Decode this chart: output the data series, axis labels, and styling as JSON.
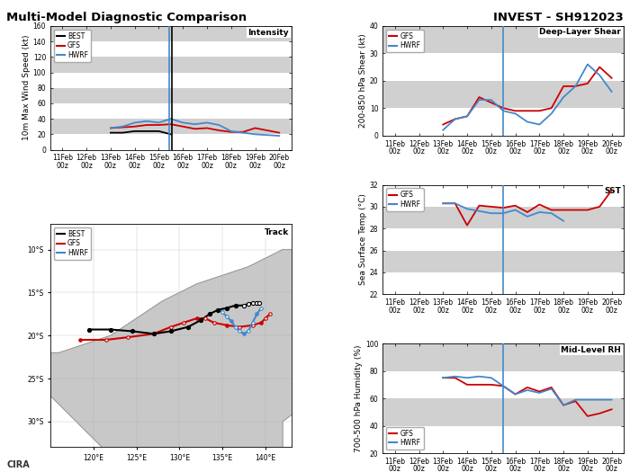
{
  "title_left": "Multi-Model Diagnostic Comparison",
  "title_right": "INVEST - SH912023",
  "xtick_labels": [
    "11Feb\n00z",
    "12Feb\n00z",
    "13Feb\n00z",
    "14Feb\n00z",
    "15Feb\n00z",
    "16Feb\n00z",
    "17Feb\n00z",
    "18Feb\n00z",
    "19Feb\n00z",
    "20Feb\n00z"
  ],
  "xtick_pos": [
    11,
    12,
    13,
    14,
    15,
    16,
    17,
    18,
    19,
    20
  ],
  "xlim": [
    10.5,
    20.5
  ],
  "intensity_ylim": [
    0,
    160
  ],
  "intensity_yticks": [
    0,
    20,
    40,
    60,
    80,
    100,
    120,
    140,
    160
  ],
  "intensity_ylabel": "10m Max Wind Speed (kt)",
  "intensity_title": "Intensity",
  "intensity_vline_black": 15.55,
  "intensity_vline_blue": 15.45,
  "intensity_best_x": [
    13.0,
    13.5,
    14.0,
    14.5,
    15.0,
    15.5
  ],
  "intensity_best_y": [
    22,
    22,
    24,
    24,
    24,
    20
  ],
  "intensity_gfs_x": [
    13.0,
    13.5,
    14.0,
    14.5,
    15.0,
    15.5,
    16.0,
    16.5,
    17.0,
    17.5,
    18.0,
    18.5,
    19.0,
    19.5,
    20.0
  ],
  "intensity_gfs_y": [
    28,
    29,
    30,
    32,
    32,
    33,
    30,
    27,
    28,
    25,
    23,
    23,
    28,
    25,
    22
  ],
  "intensity_hwrf_x": [
    13.0,
    13.5,
    14.0,
    14.5,
    15.0,
    15.5,
    16.0,
    16.5,
    17.0,
    17.5,
    18.0,
    18.5,
    19.0,
    19.5,
    20.0
  ],
  "intensity_hwrf_y": [
    28,
    30,
    35,
    37,
    35,
    40,
    35,
    33,
    35,
    32,
    24,
    22,
    20,
    19,
    18
  ],
  "shear_ylim": [
    0,
    40
  ],
  "shear_yticks": [
    0,
    10,
    20,
    30,
    40
  ],
  "shear_ylabel": "200-850 hPa Shear (kt)",
  "shear_title": "Deep-Layer Shear",
  "shear_vline": 15.5,
  "shear_gfs_x": [
    13.0,
    13.5,
    14.0,
    14.5,
    15.0,
    15.5,
    16.0,
    16.5,
    17.0,
    17.5,
    18.0,
    18.5,
    19.0,
    19.5,
    20.0
  ],
  "shear_gfs_y": [
    4,
    6,
    7,
    14,
    12,
    10,
    9,
    9,
    9,
    10,
    18,
    18,
    19,
    25,
    21
  ],
  "shear_hwrf_x": [
    13.0,
    13.5,
    14.0,
    14.5,
    15.0,
    15.5,
    16.0,
    16.5,
    17.0,
    17.5,
    18.0,
    18.5,
    19.0,
    19.5,
    20.0
  ],
  "shear_hwrf_y": [
    2,
    6,
    7,
    13,
    13,
    9,
    8,
    5,
    4,
    8,
    14,
    18,
    26,
    22,
    16
  ],
  "sst_ylim": [
    22,
    32
  ],
  "sst_yticks": [
    22,
    24,
    26,
    28,
    30,
    32
  ],
  "sst_ylabel": "Sea Surface Temp (°C)",
  "sst_title": "SST",
  "sst_vline": 15.5,
  "sst_gfs_x": [
    13.0,
    13.5,
    14.0,
    14.5,
    15.0,
    15.5,
    16.0,
    16.5,
    17.0,
    17.5,
    18.0,
    18.5,
    19.0,
    19.5,
    20.0
  ],
  "sst_gfs_y": [
    30.3,
    30.3,
    28.3,
    30.1,
    30.0,
    29.9,
    30.1,
    29.5,
    30.2,
    29.7,
    29.7,
    29.7,
    29.7,
    30.0,
    31.5
  ],
  "sst_hwrf_x": [
    13.0,
    13.5,
    14.0,
    14.5,
    15.0,
    15.5,
    16.0,
    16.5,
    17.0,
    17.5,
    18.0
  ],
  "sst_hwrf_y": [
    30.3,
    30.3,
    29.8,
    29.6,
    29.4,
    29.4,
    29.7,
    29.1,
    29.5,
    29.4,
    28.7
  ],
  "rh_ylim": [
    20,
    100
  ],
  "rh_yticks": [
    20,
    40,
    60,
    80,
    100
  ],
  "rh_ylabel": "700-500 hPa Humidity (%)",
  "rh_title": "Mid-Level RH",
  "rh_vline": 15.5,
  "rh_gfs_x": [
    13.0,
    13.5,
    14.0,
    14.5,
    15.0,
    15.5,
    16.0,
    16.5,
    17.0,
    17.5,
    18.0,
    18.5,
    19.0,
    19.5,
    20.0
  ],
  "rh_gfs_y": [
    75,
    75,
    70,
    70,
    70,
    69,
    63,
    68,
    65,
    68,
    55,
    58,
    47,
    49,
    52
  ],
  "rh_hwrf_x": [
    13.0,
    13.5,
    14.0,
    14.5,
    15.0,
    15.5,
    16.0,
    16.5,
    17.0,
    17.5,
    18.0,
    18.5,
    19.0,
    19.5,
    20.0
  ],
  "rh_hwrf_y": [
    75,
    76,
    75,
    76,
    75,
    69,
    63,
    66,
    64,
    67,
    55,
    59,
    59,
    59,
    59
  ],
  "colors": {
    "best": "#000000",
    "gfs": "#cc0000",
    "hwrf": "#4488cc",
    "vline_black": "#000000",
    "vline_blue": "#4488cc",
    "bg_gray": "#d0d0d0",
    "bg_white": "#ffffff"
  },
  "map_extent": [
    115,
    142,
    -33,
    -7
  ],
  "map_lat_ticks": [
    -30,
    -25,
    -20,
    -15,
    -10
  ],
  "map_lon_ticks": [
    120,
    125,
    130,
    135,
    140
  ],
  "track_best_lon": [
    119.5,
    122.0,
    124.5,
    127.0,
    129.0,
    131.0,
    132.5,
    133.5,
    134.5,
    135.5,
    136.5,
    137.5,
    138.0,
    138.5,
    139.0,
    139.3
  ],
  "track_best_lat": [
    -19.3,
    -19.3,
    -19.5,
    -19.8,
    -19.5,
    -19.0,
    -18.2,
    -17.5,
    -17.0,
    -16.8,
    -16.5,
    -16.5,
    -16.3,
    -16.2,
    -16.2,
    -16.2
  ],
  "track_best_open": [
    false,
    false,
    false,
    false,
    false,
    false,
    false,
    false,
    false,
    false,
    false,
    true,
    true,
    true,
    true,
    true
  ],
  "track_gfs_lon": [
    118.5,
    121.5,
    124.0,
    127.0,
    129.0,
    130.5,
    132.0,
    133.0,
    134.0,
    135.5,
    137.0,
    138.5,
    139.5,
    140.0,
    140.5
  ],
  "track_gfs_lat": [
    -20.5,
    -20.5,
    -20.2,
    -19.8,
    -19.0,
    -18.5,
    -18.0,
    -18.0,
    -18.5,
    -18.8,
    -19.0,
    -18.8,
    -18.5,
    -18.0,
    -17.5
  ],
  "track_gfs_open": [
    false,
    true,
    true,
    false,
    true,
    true,
    false,
    true,
    true,
    false,
    true,
    true,
    false,
    true,
    true
  ],
  "track_hwrf_lon": [
    134.5,
    135.0,
    135.5,
    136.0,
    136.5,
    137.0,
    137.5,
    138.0,
    138.5,
    139.0,
    139.5
  ],
  "track_hwrf_lat": [
    -17.0,
    -17.3,
    -17.8,
    -18.3,
    -19.0,
    -19.5,
    -19.8,
    -19.5,
    -18.5,
    -17.5,
    -16.8
  ],
  "track_hwrf_open": [
    false,
    true,
    true,
    false,
    true,
    true,
    false,
    true,
    true,
    false,
    true
  ]
}
